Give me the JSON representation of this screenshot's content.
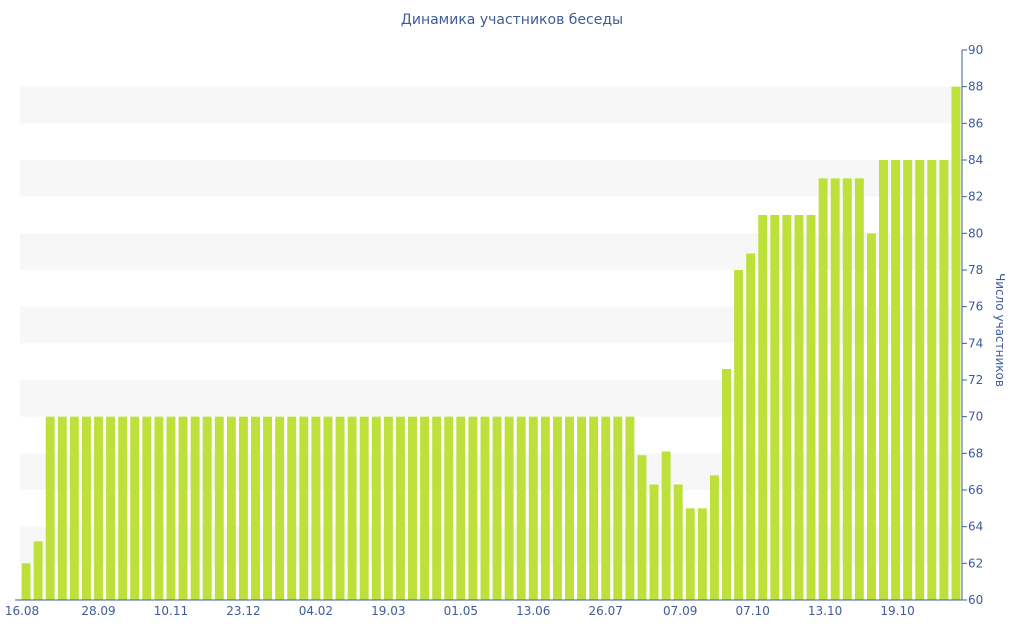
{
  "chart_data": {
    "type": "bar",
    "title": "Динамика участников беседы",
    "xlabel": "",
    "ylabel": "Число участников",
    "ylim": [
      60,
      90
    ],
    "yticks": [
      60,
      62,
      64,
      66,
      68,
      70,
      72,
      74,
      76,
      78,
      80,
      82,
      84,
      86,
      88,
      90
    ],
    "y_axis_position": "right",
    "grid": "alternating horizontal bands",
    "xtick_labels": [
      "16.08",
      "28.09",
      "10.11",
      "23.12",
      "04.02",
      "19.03",
      "01.05",
      "13.06",
      "26.07",
      "07.09",
      "07.10",
      "13.10",
      "19.10"
    ],
    "values": [
      62,
      63.2,
      70,
      70,
      70,
      70,
      70,
      70,
      70,
      70,
      70,
      70,
      70,
      70,
      70,
      70,
      70,
      70,
      70,
      70,
      70,
      70,
      70,
      70,
      70,
      70,
      70,
      70,
      70,
      70,
      70,
      70,
      70,
      70,
      70,
      70,
      70,
      70,
      70,
      70,
      70,
      70,
      70,
      70,
      70,
      70,
      70,
      70,
      70,
      70,
      70,
      67.9,
      66.3,
      68.1,
      66.3,
      65,
      65,
      66.8,
      72.6,
      78,
      78.9,
      81,
      81,
      81,
      81,
      81,
      83,
      83,
      83,
      83,
      80,
      84,
      84,
      84,
      84,
      84,
      84,
      88
    ],
    "colors": {
      "bar": "#bde03b",
      "band": "#f7f7f7",
      "axis": "#3e5c9a"
    }
  }
}
